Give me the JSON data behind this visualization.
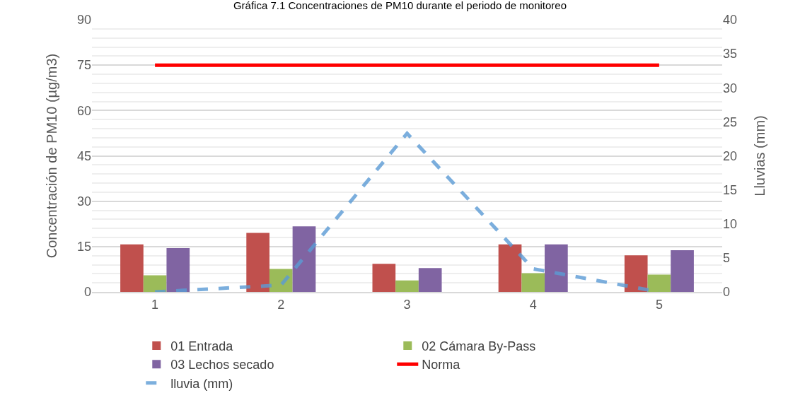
{
  "chart_data": {
    "type": "bar",
    "title": "Gráfica 7.1 Concentraciones de PM10 durante el periodo de monitoreo",
    "ylabel": "Concentración de PM10 (µg/m3)",
    "y2label": "Lluvias (mm)",
    "categories": [
      "1",
      "2",
      "3",
      "4",
      "5"
    ],
    "series": [
      {
        "name": "01 Entrada",
        "color": "#c0504d",
        "values": [
          15.7,
          19.5,
          9.3,
          15.7,
          12.1
        ]
      },
      {
        "name": "02 Cámara By-Pass",
        "color": "#9bbb59",
        "values": [
          5.5,
          7.6,
          3.8,
          6.2,
          5.7
        ]
      },
      {
        "name": "03 Lechos secado",
        "color": "#8064a2",
        "values": [
          14.5,
          21.7,
          7.9,
          15.7,
          13.8
        ]
      },
      {
        "name": "Norma",
        "type": "line",
        "color": "#ff0000",
        "line_style": "solid",
        "values": [
          75,
          75,
          75,
          75,
          75
        ]
      },
      {
        "name": "lluvia (mm)",
        "type": "line",
        "axis": "y2",
        "color": "#5b9bd5",
        "line_style": "dashed",
        "values": [
          0,
          1,
          23.3,
          3.4,
          0
        ]
      }
    ],
    "ylim": [
      0,
      90
    ],
    "yticks": [
      0,
      15,
      30,
      45,
      60,
      75,
      90
    ],
    "y2lim": [
      0,
      40
    ],
    "y2ticks": [
      0,
      5,
      10,
      15,
      20,
      25,
      30,
      35,
      40
    ],
    "grid": "y",
    "legend": "bottom",
    "marker": "none"
  }
}
